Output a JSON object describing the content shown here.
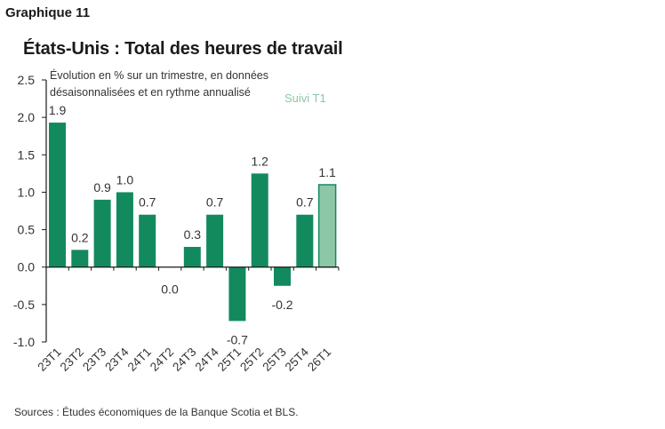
{
  "header": "Graphique 11",
  "footer": "Sources : Études économiques de la Banque Scotia et BLS.",
  "chart_data": {
    "type": "bar",
    "title": "États-Unis : Total des heures de travail",
    "subtitle_lines": [
      "Évolution en % sur un trimestre, en données",
      "désaisonnalisées et en rythme annualisé"
    ],
    "tracking_label": "Suivi T1",
    "categories": [
      "23T1",
      "23T2",
      "23T3",
      "23T4",
      "24T1",
      "24T2",
      "24T3",
      "24T4",
      "25T1",
      "25T2",
      "25T3",
      "25T4",
      "26T1"
    ],
    "values": [
      1.93,
      0.23,
      0.9,
      1.0,
      0.7,
      0.0,
      0.27,
      0.7,
      -0.72,
      1.25,
      -0.25,
      0.7,
      1.1
    ],
    "data_labels": [
      "1.9",
      "0.2",
      "0.9",
      "1.0",
      "0.7",
      "0.0",
      "0.3",
      "0.7",
      "-0.7",
      "1.2",
      "-0.2",
      "0.7",
      "1.1"
    ],
    "tracking_index": 12,
    "ylim": [
      -1.0,
      2.5
    ],
    "yticks": [
      "-1.0",
      "-0.5",
      "0.0",
      "0.5",
      "1.0",
      "1.5",
      "2.0",
      "2.5"
    ],
    "xlabel": "",
    "ylabel": "",
    "grid": false,
    "colors": {
      "bar": "#128a5e",
      "tracking_fill": "#8cc7a8",
      "tracking_stroke": "#128a5e",
      "tracking_text": "#8cc7a8"
    }
  }
}
